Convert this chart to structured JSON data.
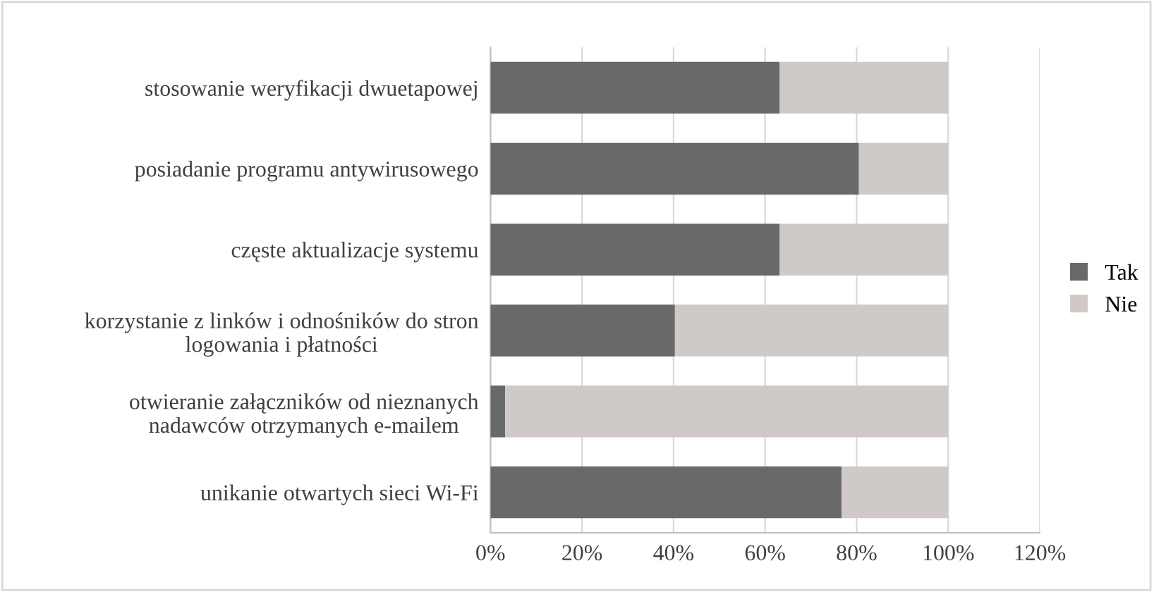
{
  "chart_data": {
    "type": "bar",
    "orientation": "horizontal",
    "stacked": true,
    "categories": [
      "stosowanie weryfikacji dwuetapowej",
      "posiadanie programu antywirusowego",
      "częste aktualizacje systemu",
      "korzystanie z linków i odnośników do stron\nlogowania i płatności",
      "otwieranie załączników od nieznanych\nnadawców otrzymanych e-mailem",
      "unikanie otwartych sieci Wi-Fi"
    ],
    "series": [
      {
        "name": "Tak",
        "color": "#696969",
        "values": [
          63.2,
          80.5,
          63.2,
          40.3,
          3.2,
          76.7
        ]
      },
      {
        "name": "Nie",
        "color": "#cfcac8",
        "values": [
          36.8,
          19.5,
          36.8,
          59.7,
          96.8,
          23.3
        ]
      }
    ],
    "xlim": [
      0,
      120
    ],
    "xticks": [
      {
        "value": 0,
        "label": "0%"
      },
      {
        "value": 20,
        "label": "20%"
      },
      {
        "value": 40,
        "label": "40%"
      },
      {
        "value": 60,
        "label": "60%"
      },
      {
        "value": 80,
        "label": "80%"
      },
      {
        "value": 100,
        "label": "100%"
      },
      {
        "value": 120,
        "label": "120%"
      }
    ],
    "grid": "x",
    "legend": "right"
  }
}
